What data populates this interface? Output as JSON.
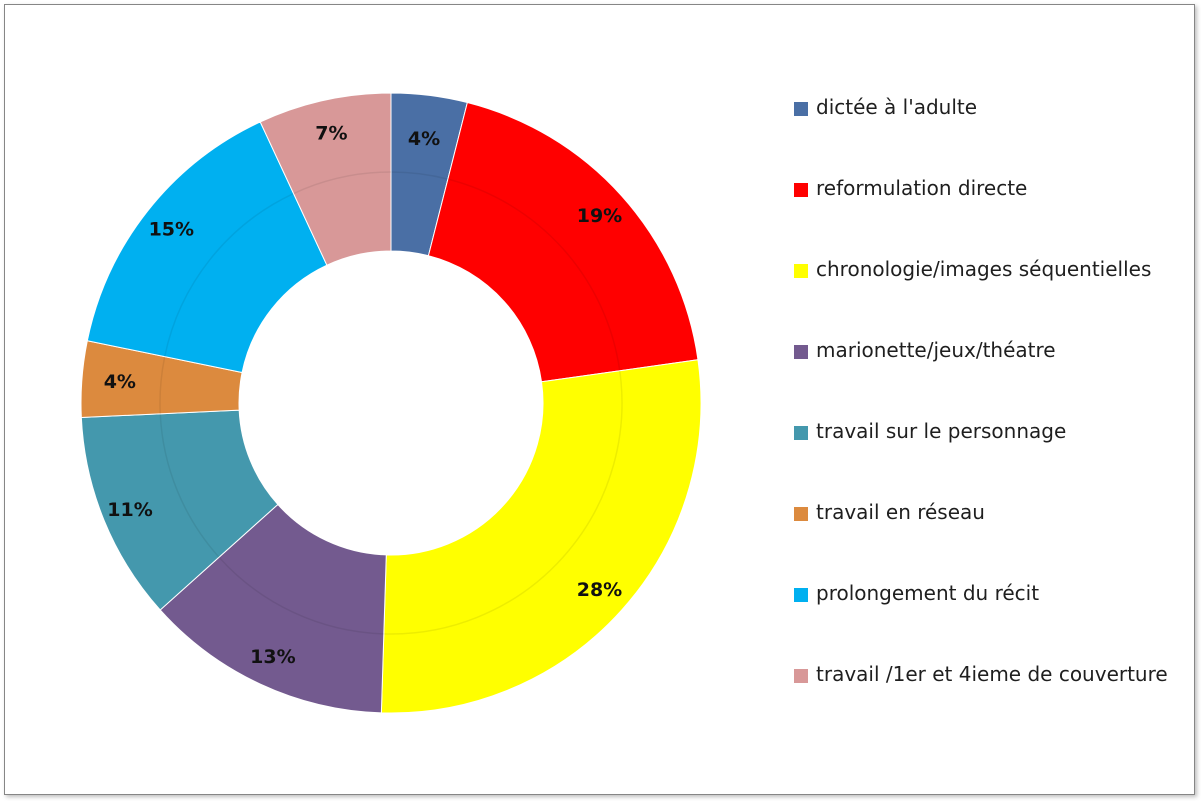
{
  "chart_data": {
    "type": "pie",
    "subtype": "donut",
    "legend_position": "right",
    "series": [
      {
        "values": [
          4,
          19,
          28,
          13,
          11,
          4,
          15,
          7
        ],
        "value_labels": [
          "4%",
          "19%",
          "28%",
          "13%",
          "11%",
          "4%",
          "15%",
          "7%"
        ]
      }
    ],
    "categories": [
      "dictée à l'adulte",
      "reformulation directe",
      "chronologie/images séquentielles",
      "marionette/jeux/théatre",
      "travail sur le personnage",
      "travail en réseau",
      "prolongement du récit",
      "travail /1er et 4ieme de couverture"
    ],
    "colors": [
      "#4a6fa5",
      "#ff0000",
      "#ffff00",
      "#735a8f",
      "#4498ad",
      "#dc8a3e",
      "#00b0f0",
      "#d89898"
    ]
  }
}
